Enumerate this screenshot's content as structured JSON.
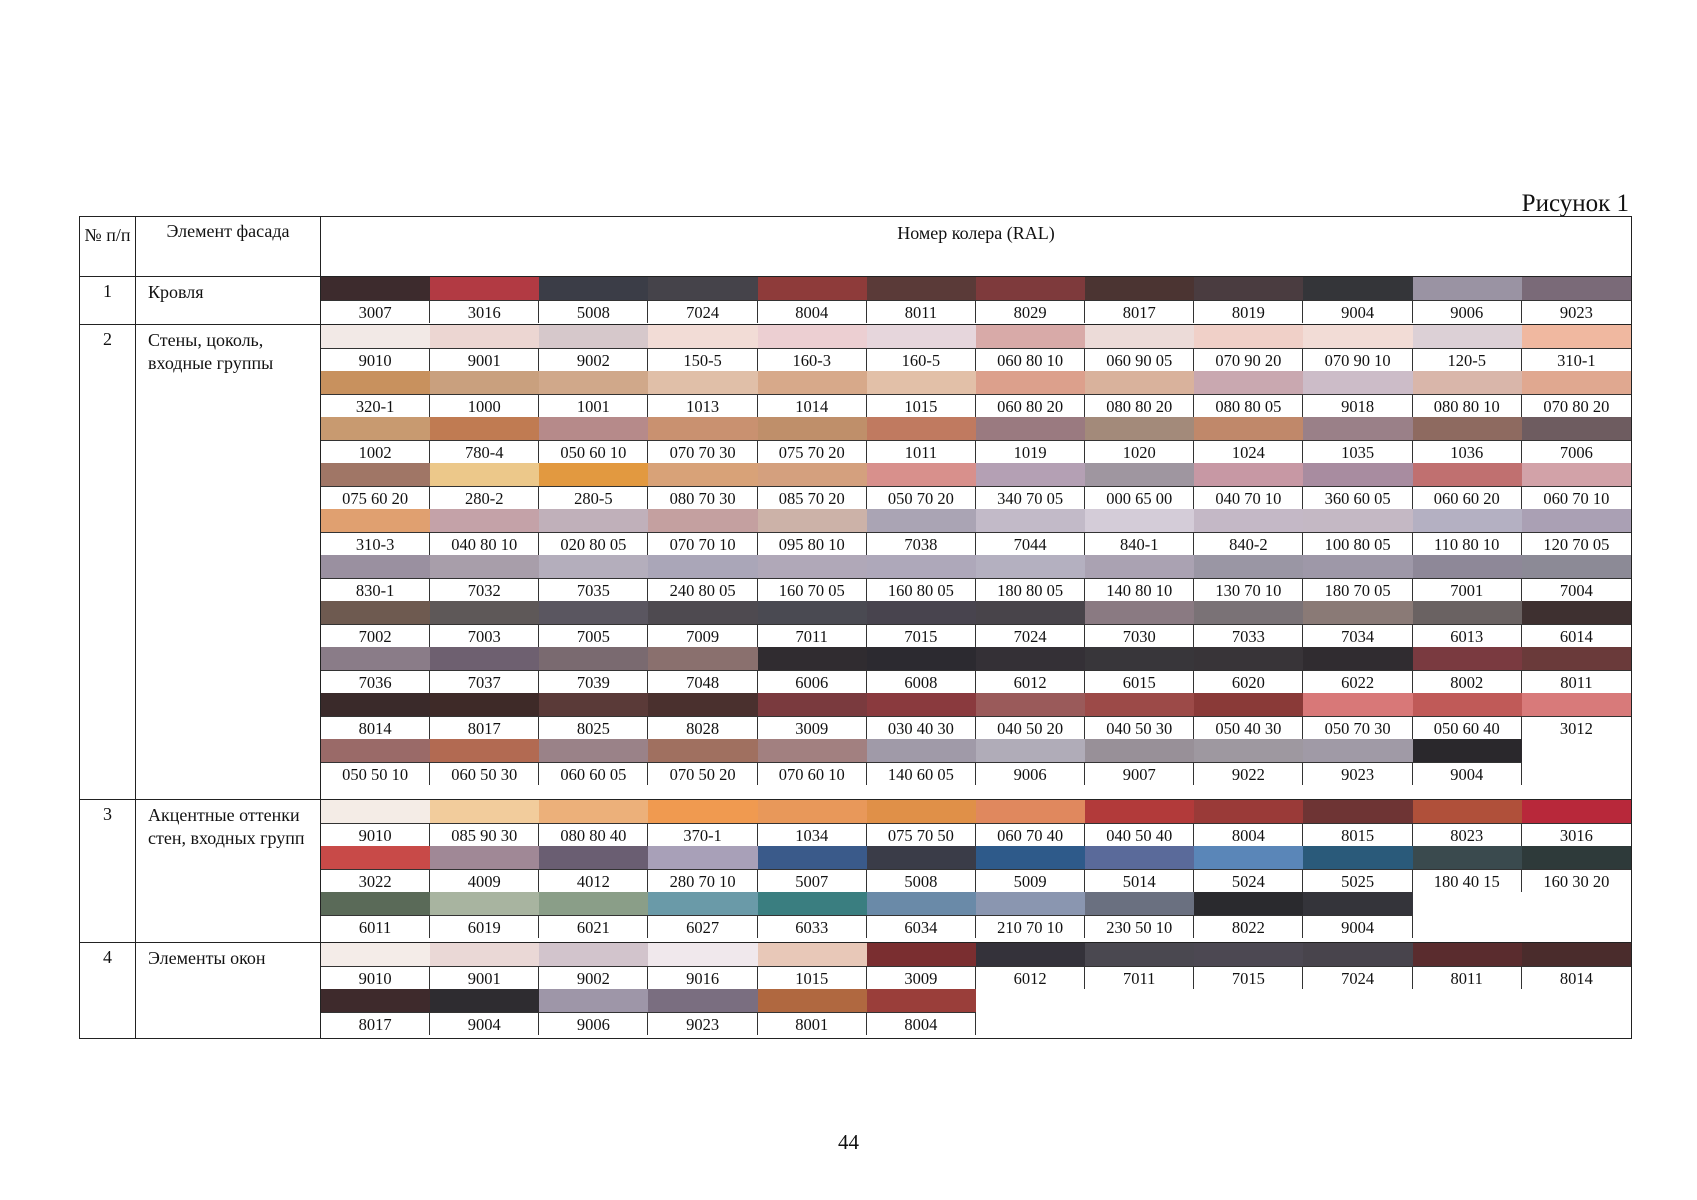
{
  "caption": "Рисунок 1",
  "headers": {
    "num": "№ п/п",
    "element": "Элемент фасада",
    "ral": "Номер колера (RAL)"
  },
  "page_number": "44",
  "rows": [
    {
      "num": "1",
      "element": "Кровля",
      "bands": [
        {
          "codes": [
            "3007",
            "3016",
            "5008",
            "7024",
            "8004",
            "8011",
            "8029",
            "8017",
            "8019",
            "9004",
            "9006",
            "9023"
          ],
          "colors": [
            "#3d2b2d",
            "#b23a43",
            "#3b3d47",
            "#45434a",
            "#8e3b3a",
            "#5a3a38",
            "#7e3a3c",
            "#4b3432",
            "#4a3c40",
            "#343539",
            "#9a93a3",
            "#7a6a78"
          ]
        }
      ]
    },
    {
      "num": "2",
      "element": "Стены, цоколь, входные группы",
      "bands": [
        {
          "codes": [
            "9010",
            "9001",
            "9002",
            "150-5",
            "160-3",
            "160-5",
            "060 80 10",
            "060 90 05",
            "070 90 20",
            "070 90 10",
            "120-5",
            "310-1"
          ],
          "colors": [
            "#f2e9e6",
            "#ecd6d2",
            "#d6c8cb",
            "#f2dcd6",
            "#eccfd2",
            "#e6d6dc",
            "#d8aaa8",
            "#ecdbd8",
            "#f0d0c8",
            "#f2dcd6",
            "#dcd0d6",
            "#f0b8a0"
          ]
        },
        {
          "codes": [
            "320-1",
            "1000",
            "1001",
            "1013",
            "1014",
            "1015",
            "060 80 20",
            "080 80 20",
            "080 80 05",
            "9018",
            "080 80 10",
            "070 80 20"
          ],
          "colors": [
            "#c8915e",
            "#c9a07e",
            "#d0a88a",
            "#e0bfa8",
            "#d7a98a",
            "#e2c0a8",
            "#dca08c",
            "#d9b29c",
            "#c9a8b0",
            "#ccbcc8",
            "#d9b6aa",
            "#e0a890"
          ]
        },
        {
          "codes": [
            "1002",
            "780-4",
            "050 60 10",
            "070 70 30",
            "075 70 20",
            "1011",
            "1019",
            "1020",
            "1024",
            "1035",
            "1036",
            "7006"
          ],
          "colors": [
            "#c89a70",
            "#c07b52",
            "#b68a8a",
            "#c99170",
            "#bf8f6a",
            "#c07a60",
            "#9a7a80",
            "#a38a7a",
            "#c0886a",
            "#9a8088",
            "#8e6a60",
            "#6e5c60"
          ]
        },
        {
          "codes": [
            "075 60 20",
            "280-2",
            "280-5",
            "080 70 30",
            "085 70 20",
            "050 70 20",
            "340 70 05",
            "000 65 00",
            "040 70 10",
            "360 60 05",
            "060 60 20",
            "060 70 10"
          ],
          "colors": [
            "#a07666",
            "#ecc88a",
            "#e29940",
            "#d8a278",
            "#d4a07e",
            "#d8908c",
            "#b4a0b4",
            "#9f96a0",
            "#c798a4",
            "#a88ca0",
            "#c07070",
            "#d2a2a8"
          ]
        },
        {
          "codes": [
            "310-3",
            "040 80 10",
            "020 80 05",
            "070 70 10",
            "095 80 10",
            "7038",
            "7044",
            "840-1",
            "840-2",
            "100 80 05",
            "110 80 10",
            "120 70 05"
          ],
          "colors": [
            "#e0a070",
            "#c4a2a8",
            "#c0b0ba",
            "#c4a0a0",
            "#ccb2a8",
            "#aaa4b4",
            "#c2bac8",
            "#d4ccd8",
            "#c4b8c6",
            "#c4b8c4",
            "#b4b0c2",
            "#aaa0b4"
          ]
        },
        {
          "codes": [
            "830-1",
            "7032",
            "7035",
            "240 80 05",
            "160 70 05",
            "160 80 05",
            "180 80 05",
            "140 80 10",
            "130 70 10",
            "180 70 05",
            "7001",
            "7004"
          ],
          "colors": [
            "#9a90a0",
            "#a89eaa",
            "#b4aebc",
            "#aaa6b8",
            "#b0a8b8",
            "#aea8ba",
            "#b4b0c0",
            "#aaa2b2",
            "#9a96a4",
            "#9e98a8",
            "#8e8898",
            "#8c8a96"
          ]
        },
        {
          "codes": [
            "7002",
            "7003",
            "7005",
            "7009",
            "7011",
            "7015",
            "7024",
            "7030",
            "7033",
            "7034",
            "6013",
            "6014"
          ],
          "colors": [
            "#6e5a50",
            "#5e5858",
            "#5a5660",
            "#4e4a50",
            "#4a4a52",
            "#48444e",
            "#48444a",
            "#8a7a82",
            "#7a7276",
            "#8a7a76",
            "#6a6262",
            "#3e3030"
          ]
        },
        {
          "codes": [
            "7036",
            "7037",
            "7039",
            "7048",
            "6006",
            "6008",
            "6012",
            "6015",
            "6020",
            "6022",
            "8002",
            "8011"
          ],
          "colors": [
            "#8a7c88",
            "#6e6070",
            "#7a6a70",
            "#8a706e",
            "#302c30",
            "#2c2a30",
            "#343036",
            "#38363a",
            "#383438",
            "#302c30",
            "#7a3a40",
            "#6a3a3a"
          ]
        },
        {
          "codes": [
            "8014",
            "8017",
            "8025",
            "8028",
            "3009",
            "030 40 30",
            "040 50 20",
            "040 50 30",
            "050 40 30",
            "050 70 30",
            "050 60 40",
            "3012"
          ],
          "colors": [
            "#3a2a2a",
            "#3e2a28",
            "#5a3a38",
            "#4a302e",
            "#7a3a3e",
            "#8a3a3e",
            "#9a5a5a",
            "#9c4a48",
            "#8a3a38",
            "#d87878",
            "#c05a58",
            "#d87a7a"
          ]
        },
        {
          "codes": [
            "050 50 10",
            "060 50 30",
            "060 60 05",
            "070 50 20",
            "070 60 10",
            "140 60 05",
            "9006",
            "9007",
            "9022",
            "9023",
            "9004",
            ""
          ],
          "colors": [
            "#9a6a68",
            "#b26a52",
            "#9a8288",
            "#a07060",
            "#a28080",
            "#a09aa8",
            "#b0acb8",
            "#989098",
            "#9e98a0",
            "#a09aa6",
            "#2a282c",
            ""
          ]
        }
      ]
    },
    {
      "num": "3",
      "element": "Акцентные оттенки стен, входных групп",
      "bands": [
        {
          "codes": [
            "9010",
            "085 90 30",
            "080 80 40",
            "370-1",
            "1034",
            "075 70 50",
            "060 70 40",
            "040 50 40",
            "8004",
            "8015",
            "8023",
            "3016"
          ],
          "colors": [
            "#f4ece6",
            "#f2cc9c",
            "#ecb07a",
            "#f09a50",
            "#e8985a",
            "#e09048",
            "#e0885e",
            "#b23a3a",
            "#9a3a38",
            "#6e3434",
            "#b0503a",
            "#b8283a"
          ]
        },
        {
          "codes": [
            "3022",
            "4009",
            "4012",
            "280 70 10",
            "5007",
            "5008",
            "5009",
            "5014",
            "5024",
            "5025",
            "180 40 15",
            "160 30 20"
          ],
          "colors": [
            "#c84a48",
            "#a08896",
            "#6a5e72",
            "#a8a0b8",
            "#3a5a8a",
            "#3a3c48",
            "#2e5a8a",
            "#5a6a9a",
            "#5a86b8",
            "#2a5a7a",
            "#3a4a4e",
            "#2e3a3a"
          ]
        },
        {
          "codes": [
            "6011",
            "6019",
            "6021",
            "6027",
            "6033",
            "6034",
            "210 70 10",
            "230 50 10",
            "8022",
            "9004",
            "",
            ""
          ],
          "colors": [
            "#5a6a58",
            "#a8b4a0",
            "#8a9e88",
            "#6a9aa8",
            "#3a7e80",
            "#6a8aa8",
            "#8a96b0",
            "#6a7080",
            "#2a2a2e",
            "#34343a",
            "",
            ""
          ]
        }
      ]
    },
    {
      "num": "4",
      "element": "Элементы окон",
      "bands": [
        {
          "codes": [
            "9010",
            "9001",
            "9002",
            "9016",
            "1015",
            "3009",
            "6012",
            "7011",
            "7015",
            "7024",
            "8011",
            "8014"
          ],
          "colors": [
            "#f4ece8",
            "#ead8d6",
            "#d2c4cc",
            "#f0e8ec",
            "#e8c8b8",
            "#7a2e30",
            "#34323a",
            "#4a4850",
            "#4c4852",
            "#48444c",
            "#5a2c2e",
            "#4a2c2c"
          ]
        },
        {
          "codes": [
            "8017",
            "9004",
            "9006",
            "9023",
            "8001",
            "8004",
            "",
            "",
            "",
            "",
            "",
            ""
          ],
          "colors": [
            "#3e2a2c",
            "#2e2c30",
            "#9e96a8",
            "#7a6e80",
            "#b06840",
            "#9a3e3a",
            "",
            "",
            "",
            "",
            "",
            ""
          ]
        }
      ]
    }
  ]
}
